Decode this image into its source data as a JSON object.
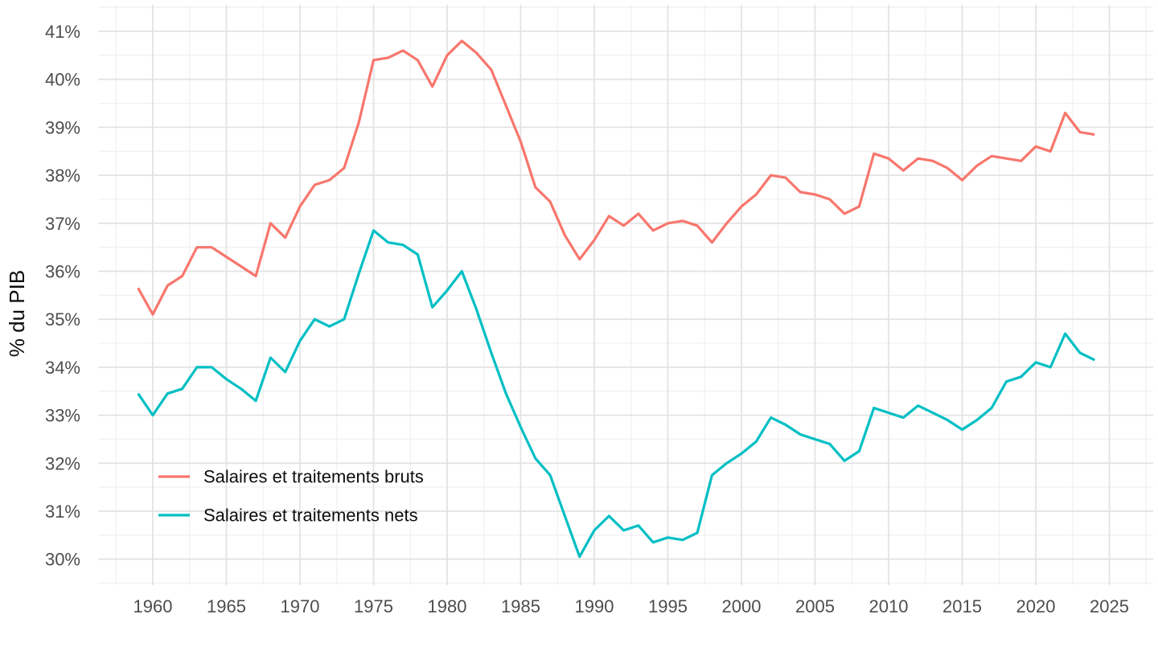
{
  "chart_data": {
    "type": "line",
    "title": "",
    "xlabel": "",
    "ylabel": "% du PIB",
    "grid": "on",
    "legend_position": "inside-left",
    "x_axis": {
      "min": 1959,
      "max": 2024,
      "tick_start": 1960,
      "tick_step": 5
    },
    "y_axis": {
      "min": 30,
      "max": 41,
      "tick_step": 1,
      "unit": "%"
    },
    "x_tick_labels": [
      "1960",
      "1965",
      "1970",
      "1975",
      "1980",
      "1985",
      "1990",
      "1995",
      "2000",
      "2005",
      "2010",
      "2015",
      "2020",
      "2025"
    ],
    "y_tick_labels": [
      "30%",
      "31%",
      "32%",
      "33%",
      "34%",
      "35%",
      "36%",
      "37%",
      "38%",
      "39%",
      "40%",
      "41%"
    ],
    "years": [
      1959,
      1960,
      1961,
      1962,
      1963,
      1964,
      1965,
      1966,
      1967,
      1968,
      1969,
      1970,
      1971,
      1972,
      1973,
      1974,
      1975,
      1976,
      1977,
      1978,
      1979,
      1980,
      1981,
      1982,
      1983,
      1984,
      1985,
      1986,
      1987,
      1988,
      1989,
      1990,
      1991,
      1992,
      1993,
      1994,
      1995,
      1996,
      1997,
      1998,
      1999,
      2000,
      2001,
      2002,
      2003,
      2004,
      2005,
      2006,
      2007,
      2008,
      2009,
      2010,
      2011,
      2012,
      2013,
      2014,
      2015,
      2016,
      2017,
      2018,
      2019,
      2020,
      2021,
      2022,
      2023,
      2024
    ],
    "series": [
      {
        "name": "Salaires et traitements bruts",
        "color": "#F8766D",
        "values": [
          35.65,
          35.1,
          35.7,
          35.9,
          36.5,
          36.5,
          36.3,
          36.1,
          35.9,
          37.0,
          36.7,
          37.35,
          37.8,
          37.9,
          38.15,
          39.1,
          40.4,
          40.45,
          40.6,
          40.4,
          39.85,
          40.5,
          40.8,
          40.55,
          40.2,
          39.45,
          38.7,
          37.75,
          37.45,
          36.75,
          36.25,
          36.65,
          37.15,
          36.95,
          37.2,
          36.85,
          37.0,
          37.05,
          36.95,
          36.6,
          37.0,
          37.35,
          37.6,
          38.0,
          37.95,
          37.65,
          37.6,
          37.5,
          37.2,
          37.35,
          38.45,
          38.35,
          38.1,
          38.35,
          38.3,
          38.15,
          37.9,
          38.2,
          38.4,
          38.35,
          38.3,
          38.6,
          38.5,
          39.3,
          38.9,
          38.85
        ]
      },
      {
        "name": "Salaires et traitements nets",
        "color": "#00BFC4",
        "values": [
          33.45,
          33.0,
          33.45,
          33.55,
          34.0,
          34.0,
          33.75,
          33.55,
          33.3,
          34.2,
          33.9,
          34.55,
          35.0,
          34.85,
          35.0,
          35.95,
          36.85,
          36.6,
          36.55,
          36.35,
          35.25,
          35.6,
          36.0,
          35.2,
          34.3,
          33.45,
          32.75,
          32.1,
          31.75,
          30.9,
          30.05,
          30.6,
          30.9,
          30.6,
          30.7,
          30.35,
          30.45,
          30.4,
          30.55,
          31.75,
          32.0,
          32.2,
          32.45,
          32.95,
          32.8,
          32.6,
          32.5,
          32.4,
          32.05,
          32.25,
          33.15,
          33.05,
          32.95,
          33.2,
          33.05,
          32.9,
          32.7,
          32.9,
          33.15,
          33.7,
          33.8,
          34.1,
          34.0,
          34.7,
          34.3,
          34.15
        ]
      }
    ]
  },
  "colors": {
    "background": "#FFFFFF",
    "grid_major": "#E3E3E3",
    "grid_minor": "#F0F0F0",
    "tick_text": "#4D4D4D",
    "label_text": "#0D0D0D"
  }
}
